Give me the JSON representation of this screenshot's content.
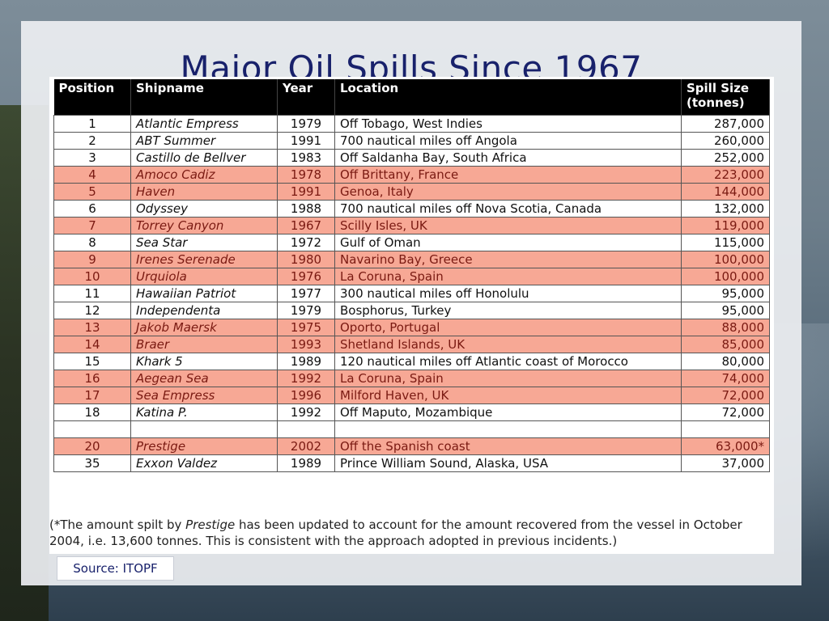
{
  "slide": {
    "title": "Major Oil Spills Since 1967",
    "source": "Source: ITOPF"
  },
  "table": {
    "headers": {
      "position": "Position",
      "shipname": "Shipname",
      "year": "Year",
      "location": "Location",
      "spill_size_line1": "Spill Size",
      "spill_size_line2": "(tonnes)"
    },
    "highlight_color": "#f7a895",
    "rows": [
      {
        "position": "1",
        "shipname": "Atlantic Empress",
        "year": "1979",
        "location": "Off Tobago, West Indies",
        "spill_size": "287,000",
        "highlighted": false
      },
      {
        "position": "2",
        "shipname": "ABT Summer",
        "year": "1991",
        "location": "700 nautical miles off Angola",
        "spill_size": "260,000",
        "highlighted": false
      },
      {
        "position": "3",
        "shipname": "Castillo de Bellver",
        "year": "1983",
        "location": "Off Saldanha Bay, South Africa",
        "spill_size": "252,000",
        "highlighted": false
      },
      {
        "position": "4",
        "shipname": "Amoco Cadiz",
        "year": "1978",
        "location": "Off Brittany, France",
        "spill_size": "223,000",
        "highlighted": true
      },
      {
        "position": "5",
        "shipname": "Haven",
        "year": "1991",
        "location": "Genoa, Italy",
        "spill_size": "144,000",
        "highlighted": true
      },
      {
        "position": "6",
        "shipname": "Odyssey",
        "year": "1988",
        "location": "700 nautical miles off Nova Scotia, Canada",
        "spill_size": "132,000",
        "highlighted": false
      },
      {
        "position": "7",
        "shipname": "Torrey Canyon",
        "year": "1967",
        "location": "Scilly Isles, UK",
        "spill_size": "119,000",
        "highlighted": true
      },
      {
        "position": "8",
        "shipname": "Sea Star",
        "year": "1972",
        "location": "Gulf of Oman",
        "spill_size": "115,000",
        "highlighted": false
      },
      {
        "position": "9",
        "shipname": "Irenes Serenade",
        "year": "1980",
        "location": "Navarino Bay, Greece",
        "spill_size": "100,000",
        "highlighted": true
      },
      {
        "position": "10",
        "shipname": "Urquiola",
        "year": "1976",
        "location": "La Coruna, Spain",
        "spill_size": "100,000",
        "highlighted": true
      },
      {
        "position": "11",
        "shipname": "Hawaiian Patriot",
        "year": "1977",
        "location": "300 nautical miles off Honolulu",
        "spill_size": "95,000",
        "highlighted": false
      },
      {
        "position": "12",
        "shipname": "Independenta",
        "year": "1979",
        "location": "Bosphorus, Turkey",
        "spill_size": "95,000",
        "highlighted": false
      },
      {
        "position": "13",
        "shipname": "Jakob Maersk",
        "year": "1975",
        "location": "Oporto, Portugal",
        "spill_size": "88,000",
        "highlighted": true
      },
      {
        "position": "14",
        "shipname": "Braer",
        "year": "1993",
        "location": "Shetland Islands, UK",
        "spill_size": "85,000",
        "highlighted": true
      },
      {
        "position": "15",
        "shipname": "Khark 5",
        "year": "1989",
        "location": "120 nautical miles off Atlantic coast of Morocco",
        "spill_size": "80,000",
        "highlighted": false
      },
      {
        "position": "16",
        "shipname": "Aegean Sea",
        "year": "1992",
        "location": "La Coruna, Spain",
        "spill_size": "74,000",
        "highlighted": true
      },
      {
        "position": "17",
        "shipname": "Sea Empress",
        "year": "1996",
        "location": "Milford Haven, UK",
        "spill_size": "72,000",
        "highlighted": true
      },
      {
        "position": "18",
        "shipname": "Katina P.",
        "year": "1992",
        "location": "Off Maputo, Mozambique",
        "spill_size": "72,000",
        "highlighted": false
      },
      {
        "position": "",
        "shipname": "",
        "year": "",
        "location": "",
        "spill_size": "",
        "highlighted": false
      },
      {
        "position": "20",
        "shipname": "Prestige",
        "year": "2002",
        "location": "Off the Spanish coast",
        "spill_size": "63,000*",
        "highlighted": true
      },
      {
        "position": "35",
        "shipname": "Exxon Valdez",
        "year": "1989",
        "location": "Prince William Sound, Alaska, USA",
        "spill_size": "37,000",
        "highlighted": false
      }
    ]
  },
  "footnote": {
    "part1": "(*The amount spilt by ",
    "ship": "Prestige",
    "part2": " has been updated to account for the amount recovered from the vessel in October 2004, i.e. 13,600 tonnes. This is consistent with the approach adopted in previous incidents.)"
  }
}
